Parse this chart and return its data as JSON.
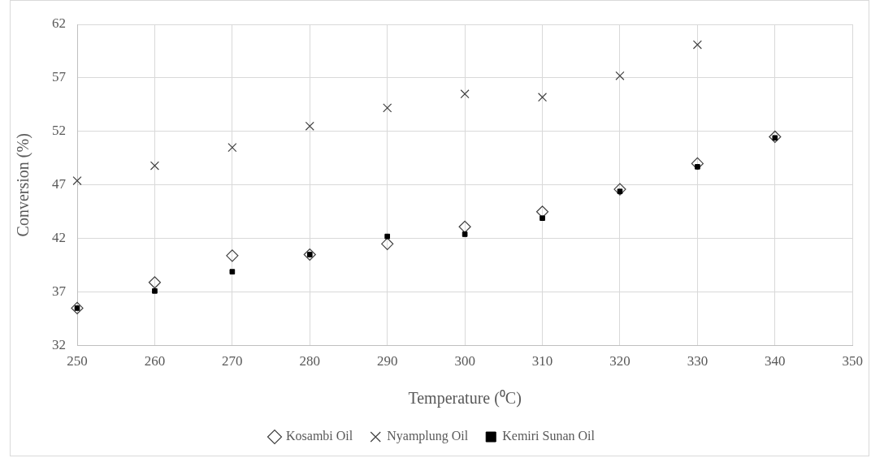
{
  "chart_data": {
    "type": "scatter",
    "xlabel": "Temperature (⁰C)",
    "ylabel": "Conversion (%)",
    "x": [
      250,
      260,
      270,
      280,
      290,
      300,
      310,
      320,
      330,
      340
    ],
    "series": [
      {
        "name": "Kosambi Oil",
        "color": "#404040",
        "marker": "diamond",
        "values": [
          35.5,
          37.9,
          40.4,
          40.5,
          41.5,
          43.1,
          44.5,
          46.6,
          49.0,
          51.5
        ]
      },
      {
        "name": "Nyamplung Oil",
        "color": "#404040",
        "marker": "cross",
        "values": [
          47.4,
          48.8,
          50.5,
          52.5,
          54.2,
          55.5,
          55.2,
          57.2,
          60.1,
          null
        ]
      },
      {
        "name": "Kemiri Sunan Oil",
        "color": "#000000",
        "marker": "square",
        "values": [
          35.5,
          37.1,
          38.9,
          40.5,
          42.2,
          42.4,
          43.9,
          46.4,
          48.7,
          51.4
        ]
      }
    ],
    "xlim": [
      250,
      350
    ],
    "xticks": [
      250,
      260,
      270,
      280,
      290,
      300,
      310,
      320,
      330,
      340,
      350
    ],
    "ylim": [
      32,
      62
    ],
    "yticks": [
      32,
      37,
      42,
      47,
      52,
      57,
      62
    ],
    "grid": true,
    "legend": "bottom"
  }
}
